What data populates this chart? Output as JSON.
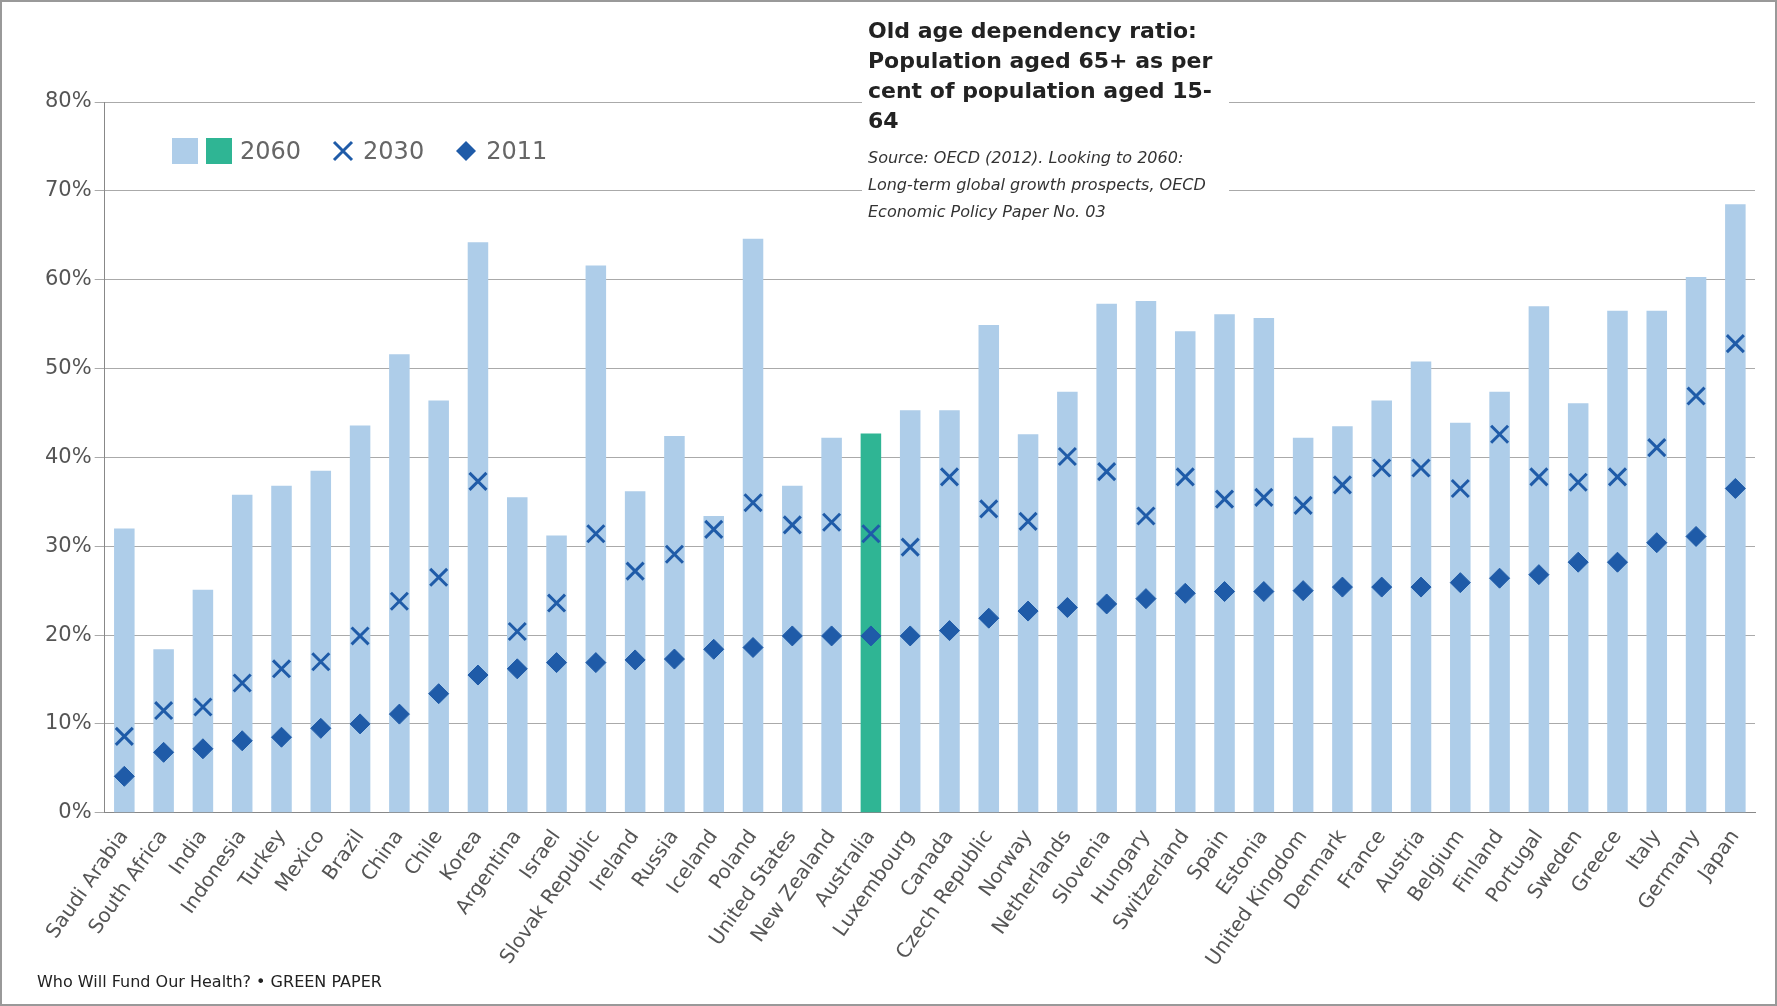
{
  "chart_data": {
    "type": "bar",
    "title": "Old age dependency ratio: Population aged 65+ as per cent of population aged 15-64",
    "subtitle": "Source: OECD (2012). Looking to 2060: Long-term global growth prospects, OECD Economic Policy Paper No. 03",
    "annotations": [
      "Who Will Fund Our Health? • GREEN PAPER"
    ],
    "categories": [
      "Saudi Arabia",
      "South Africa",
      "India",
      "Indonesia",
      "Turkey",
      "Mexico",
      "Brazil",
      "China",
      "Chile",
      "Korea",
      "Argentina",
      "Israel",
      "Slovak Republic",
      "Ireland",
      "Russia",
      "Iceland",
      "Poland",
      "United States",
      "New Zealand",
      "Australia",
      "Luxembourg",
      "Canada",
      "Czech Republic",
      "Norway",
      "Netherlands",
      "Slovenia",
      "Hungary",
      "Switzerland",
      "Spain",
      "Estonia",
      "United Kingdom",
      "Denmark",
      "France",
      "Austria",
      "Belgium",
      "Finland",
      "Portugal",
      "Sweden",
      "Greece",
      "Italy",
      "Germany",
      "Japan"
    ],
    "series": [
      {
        "name": "2060",
        "color": "#aecde9",
        "colors": [
          "#aecde9",
          "#aecde9",
          "#aecde9",
          "#aecde9",
          "#aecde9",
          "#aecde9",
          "#aecde9",
          "#aecde9",
          "#aecde9",
          "#aecde9",
          "#aecde9",
          "#aecde9",
          "#aecde9",
          "#aecde9",
          "#aecde9",
          "#aecde9",
          "#aecde9",
          "#aecde9",
          "#aecde9",
          "#2fb594",
          "#aecde9",
          "#aecde9",
          "#aecde9",
          "#aecde9",
          "#aecde9",
          "#aecde9",
          "#aecde9",
          "#aecde9",
          "#aecde9",
          "#aecde9",
          "#aecde9",
          "#aecde9",
          "#aecde9",
          "#aecde9",
          "#aecde9",
          "#aecde9",
          "#aecde9",
          "#aecde9",
          "#aecde9",
          "#aecde9",
          "#aecde9",
          "#aecde9"
        ],
        "values": [
          32,
          18.4,
          25.1,
          35.8,
          36.8,
          38.5,
          43.6,
          51.6,
          46.4,
          64.2,
          35.5,
          31.2,
          61.6,
          36.2,
          42.4,
          33.4,
          64.6,
          36.8,
          42.2,
          42.7,
          45.3,
          45.3,
          54.9,
          42.6,
          47.4,
          57.3,
          57.6,
          54.2,
          56.1,
          55.7,
          42.2,
          43.5,
          46.4,
          50.8,
          43.9,
          47.4,
          57,
          46.1,
          56.5,
          56.5,
          60.3,
          68.5
        ]
      },
      {
        "name": "2030",
        "type": "scatter",
        "marker": "cross",
        "color": "#1f5ba8",
        "values": [
          8.6,
          11.5,
          11.9,
          14.6,
          16.2,
          17,
          19.9,
          23.8,
          26.5,
          37.3,
          20.4,
          23.6,
          31.4,
          27.2,
          29.1,
          31.9,
          34.9,
          32.4,
          32.7,
          31.4,
          29.9,
          37.8,
          34.2,
          32.8,
          40.1,
          38.4,
          33.4,
          37.8,
          35.3,
          35.5,
          34.6,
          36.9,
          38.8,
          38.8,
          36.5,
          42.6,
          37.8,
          37.2,
          37.8,
          41.1,
          46.9,
          52.8
        ]
      },
      {
        "name": "2011",
        "type": "scatter",
        "marker": "diamond",
        "color": "#1f5ba8",
        "values": [
          4.1,
          6.8,
          7.2,
          8.1,
          8.5,
          9.5,
          10,
          11.1,
          13.4,
          15.5,
          16.2,
          16.9,
          16.9,
          17.2,
          17.3,
          18.4,
          18.6,
          19.9,
          19.9,
          19.9,
          19.9,
          20.5,
          21.9,
          22.7,
          23.1,
          23.5,
          24.1,
          24.7,
          24.9,
          24.9,
          25,
          25.4,
          25.4,
          25.4,
          25.9,
          26.4,
          26.8,
          28.2,
          28.2,
          30.4,
          31.1,
          36.5
        ]
      }
    ],
    "ylim": [
      0,
      80
    ],
    "yticks": [
      {
        "value": 0,
        "label": "0%"
      },
      {
        "value": 10,
        "label": "10%"
      },
      {
        "value": 20,
        "label": "20%"
      },
      {
        "value": 30,
        "label": "30%"
      },
      {
        "value": 40,
        "label": "40%"
      },
      {
        "value": 50,
        "label": "50%"
      },
      {
        "value": 60,
        "label": "60%"
      },
      {
        "value": 70,
        "label": "70%"
      },
      {
        "value": 80,
        "label": "80%"
      }
    ],
    "grid": "y",
    "legend": "top left"
  }
}
